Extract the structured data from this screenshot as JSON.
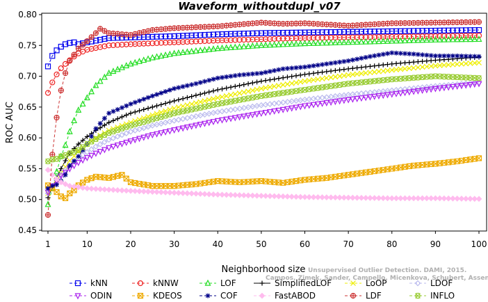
{
  "watermark": {
    "line1": "Unsupervised Outlier Detection. DAMI, 2015.",
    "line2": "Campos, Zimek, Sander, Campello, Micenkova, Schubert, Assent, Houle"
  },
  "chart_data": {
    "type": "line",
    "title": "Waveform_withoutdupl_v07",
    "xlabel": "Neighborhood size",
    "ylabel": "ROC AUC",
    "xlim": [
      1,
      100
    ],
    "ylim": [
      0.45,
      0.8
    ],
    "xticks": [
      1,
      10,
      20,
      30,
      40,
      50,
      60,
      70,
      80,
      90,
      100
    ],
    "yticks": [
      0.45,
      0.5,
      0.55,
      0.6,
      0.65,
      0.7,
      0.75,
      0.8
    ],
    "ytick_labels": [
      "0.45",
      "0.50",
      "0.55",
      "0.60",
      "0.65",
      "0.70",
      "0.75",
      "0.80"
    ],
    "grid": false,
    "legend_position": "bottom",
    "series": [
      {
        "name": "kNN",
        "color": "#0000ee",
        "marker": "square",
        "dash": "4,3",
        "points": [
          [
            1,
            0.716
          ],
          [
            2,
            0.733
          ],
          [
            3,
            0.742
          ],
          [
            4,
            0.748
          ],
          [
            5,
            0.752
          ],
          [
            6,
            0.754
          ],
          [
            7,
            0.755
          ],
          [
            8,
            0.752
          ],
          [
            10,
            0.755
          ],
          [
            15,
            0.762
          ],
          [
            20,
            0.763
          ],
          [
            30,
            0.765
          ],
          [
            40,
            0.768
          ],
          [
            50,
            0.77
          ],
          [
            60,
            0.771
          ],
          [
            70,
            0.772
          ],
          [
            80,
            0.773
          ],
          [
            90,
            0.774
          ],
          [
            100,
            0.775
          ]
        ]
      },
      {
        "name": "kNNW",
        "color": "#ee2222",
        "marker": "circle",
        "dash": "4,3",
        "points": [
          [
            1,
            0.673
          ],
          [
            2,
            0.69
          ],
          [
            3,
            0.703
          ],
          [
            4,
            0.713
          ],
          [
            5,
            0.72
          ],
          [
            6,
            0.726
          ],
          [
            7,
            0.732
          ],
          [
            8,
            0.737
          ],
          [
            10,
            0.743
          ],
          [
            15,
            0.75
          ],
          [
            20,
            0.752
          ],
          [
            30,
            0.755
          ],
          [
            40,
            0.758
          ],
          [
            50,
            0.76
          ],
          [
            60,
            0.762
          ],
          [
            70,
            0.763
          ],
          [
            80,
            0.764
          ],
          [
            90,
            0.765
          ],
          [
            100,
            0.766
          ]
        ]
      },
      {
        "name": "LOF",
        "color": "#22dd22",
        "marker": "triangle-up",
        "dash": "4,3",
        "points": [
          [
            1,
            0.492
          ],
          [
            2,
            0.518
          ],
          [
            3,
            0.545
          ],
          [
            4,
            0.57
          ],
          [
            5,
            0.588
          ],
          [
            6,
            0.61
          ],
          [
            7,
            0.628
          ],
          [
            8,
            0.645
          ],
          [
            10,
            0.665
          ],
          [
            12,
            0.685
          ],
          [
            15,
            0.705
          ],
          [
            20,
            0.72
          ],
          [
            25,
            0.73
          ],
          [
            30,
            0.737
          ],
          [
            40,
            0.745
          ],
          [
            50,
            0.75
          ],
          [
            60,
            0.753
          ],
          [
            70,
            0.755
          ],
          [
            80,
            0.757
          ],
          [
            90,
            0.759
          ],
          [
            100,
            0.76
          ]
        ]
      },
      {
        "name": "SimplifiedLOF",
        "color": "#000000",
        "marker": "plus",
        "dash": "",
        "points": [
          [
            1,
            0.503
          ],
          [
            2,
            0.52
          ],
          [
            3,
            0.535
          ],
          [
            4,
            0.55
          ],
          [
            5,
            0.563
          ],
          [
            6,
            0.575
          ],
          [
            8,
            0.59
          ],
          [
            10,
            0.602
          ],
          [
            12,
            0.612
          ],
          [
            15,
            0.625
          ],
          [
            20,
            0.64
          ],
          [
            25,
            0.65
          ],
          [
            30,
            0.66
          ],
          [
            40,
            0.678
          ],
          [
            50,
            0.692
          ],
          [
            60,
            0.703
          ],
          [
            70,
            0.712
          ],
          [
            80,
            0.72
          ],
          [
            90,
            0.726
          ],
          [
            100,
            0.731
          ]
        ]
      },
      {
        "name": "LoOP",
        "color": "#eeee00",
        "marker": "x",
        "dash": "4,3",
        "points": [
          [
            1,
            0.51
          ],
          [
            2,
            0.52
          ],
          [
            3,
            0.532
          ],
          [
            4,
            0.543
          ],
          [
            5,
            0.553
          ],
          [
            6,
            0.563
          ],
          [
            8,
            0.578
          ],
          [
            10,
            0.59
          ],
          [
            12,
            0.6
          ],
          [
            15,
            0.612
          ],
          [
            20,
            0.625
          ],
          [
            25,
            0.637
          ],
          [
            30,
            0.648
          ],
          [
            40,
            0.665
          ],
          [
            50,
            0.68
          ],
          [
            60,
            0.692
          ],
          [
            70,
            0.702
          ],
          [
            80,
            0.71
          ],
          [
            90,
            0.717
          ],
          [
            100,
            0.722
          ]
        ]
      },
      {
        "name": "LDOF",
        "color": "#bbbbee",
        "marker": "diamond",
        "dash": "4,3",
        "points": [
          [
            1,
            0.51
          ],
          [
            2,
            0.522
          ],
          [
            3,
            0.532
          ],
          [
            4,
            0.54
          ],
          [
            5,
            0.548
          ],
          [
            6,
            0.555
          ],
          [
            8,
            0.567
          ],
          [
            10,
            0.577
          ],
          [
            12,
            0.586
          ],
          [
            15,
            0.597
          ],
          [
            20,
            0.61
          ],
          [
            25,
            0.62
          ],
          [
            30,
            0.628
          ],
          [
            40,
            0.642
          ],
          [
            50,
            0.653
          ],
          [
            60,
            0.662
          ],
          [
            70,
            0.67
          ],
          [
            80,
            0.677
          ],
          [
            90,
            0.684
          ],
          [
            100,
            0.69
          ]
        ]
      },
      {
        "name": "ODIN",
        "color": "#aa22ee",
        "marker": "triangle-down",
        "dash": "4,3",
        "points": [
          [
            1,
            0.512
          ],
          [
            2,
            0.522
          ],
          [
            3,
            0.53
          ],
          [
            4,
            0.538
          ],
          [
            5,
            0.544
          ],
          [
            6,
            0.55
          ],
          [
            8,
            0.56
          ],
          [
            10,
            0.568
          ],
          [
            12,
            0.575
          ],
          [
            15,
            0.584
          ],
          [
            20,
            0.595
          ],
          [
            25,
            0.605
          ],
          [
            30,
            0.613
          ],
          [
            40,
            0.628
          ],
          [
            50,
            0.64
          ],
          [
            60,
            0.652
          ],
          [
            70,
            0.662
          ],
          [
            80,
            0.671
          ],
          [
            90,
            0.68
          ],
          [
            100,
            0.688
          ]
        ]
      },
      {
        "name": "KDEOS",
        "color": "#eeaa00",
        "marker": "square-x",
        "dash": "4,3",
        "points": [
          [
            1,
            0.523
          ],
          [
            2,
            0.518
          ],
          [
            3,
            0.512
          ],
          [
            4,
            0.505
          ],
          [
            5,
            0.502
          ],
          [
            6,
            0.51
          ],
          [
            7,
            0.515
          ],
          [
            8,
            0.523
          ],
          [
            10,
            0.532
          ],
          [
            12,
            0.537
          ],
          [
            15,
            0.535
          ],
          [
            18,
            0.54
          ],
          [
            20,
            0.528
          ],
          [
            25,
            0.522
          ],
          [
            30,
            0.522
          ],
          [
            35,
            0.525
          ],
          [
            40,
            0.53
          ],
          [
            45,
            0.528
          ],
          [
            50,
            0.53
          ],
          [
            55,
            0.527
          ],
          [
            60,
            0.532
          ],
          [
            65,
            0.535
          ],
          [
            70,
            0.54
          ],
          [
            75,
            0.545
          ],
          [
            80,
            0.55
          ],
          [
            85,
            0.555
          ],
          [
            90,
            0.558
          ],
          [
            95,
            0.562
          ],
          [
            100,
            0.567
          ]
        ]
      },
      {
        "name": "COF",
        "color": "#000088",
        "marker": "star",
        "dash": "4,3",
        "points": [
          [
            1,
            0.518
          ],
          [
            2,
            0.522
          ],
          [
            3,
            0.524
          ],
          [
            4,
            0.53
          ],
          [
            5,
            0.54
          ],
          [
            6,
            0.555
          ],
          [
            8,
            0.57
          ],
          [
            10,
            0.59
          ],
          [
            12,
            0.615
          ],
          [
            15,
            0.64
          ],
          [
            20,
            0.655
          ],
          [
            25,
            0.668
          ],
          [
            30,
            0.68
          ],
          [
            35,
            0.688
          ],
          [
            40,
            0.697
          ],
          [
            45,
            0.702
          ],
          [
            50,
            0.705
          ],
          [
            55,
            0.712
          ],
          [
            60,
            0.715
          ],
          [
            65,
            0.72
          ],
          [
            70,
            0.725
          ],
          [
            75,
            0.732
          ],
          [
            80,
            0.738
          ],
          [
            85,
            0.736
          ],
          [
            90,
            0.733
          ],
          [
            95,
            0.733
          ],
          [
            100,
            0.732
          ]
        ]
      },
      {
        "name": "FastABOD",
        "color": "#ffbbee",
        "marker": "diamond-filled",
        "dash": "4,3",
        "points": [
          [
            1,
            0.548
          ],
          [
            2,
            0.54
          ],
          [
            3,
            0.533
          ],
          [
            4,
            0.528
          ],
          [
            5,
            0.525
          ],
          [
            6,
            0.522
          ],
          [
            8,
            0.52
          ],
          [
            10,
            0.518
          ],
          [
            15,
            0.516
          ],
          [
            20,
            0.514
          ],
          [
            30,
            0.511
          ],
          [
            40,
            0.508
          ],
          [
            50,
            0.506
          ],
          [
            60,
            0.504
          ],
          [
            70,
            0.503
          ],
          [
            80,
            0.502
          ],
          [
            90,
            0.502
          ],
          [
            100,
            0.501
          ]
        ]
      },
      {
        "name": "LDF",
        "color": "#cc3333",
        "marker": "circle-plus",
        "dash": "4,3",
        "points": [
          [
            1,
            0.475
          ],
          [
            2,
            0.573
          ],
          [
            3,
            0.633
          ],
          [
            4,
            0.677
          ],
          [
            5,
            0.705
          ],
          [
            6,
            0.725
          ],
          [
            8,
            0.745
          ],
          [
            10,
            0.757
          ],
          [
            12,
            0.77
          ],
          [
            13,
            0.777
          ],
          [
            15,
            0.77
          ],
          [
            20,
            0.767
          ],
          [
            25,
            0.775
          ],
          [
            30,
            0.778
          ],
          [
            40,
            0.781
          ],
          [
            50,
            0.787
          ],
          [
            55,
            0.785
          ],
          [
            60,
            0.786
          ],
          [
            70,
            0.782
          ],
          [
            80,
            0.786
          ],
          [
            90,
            0.787
          ],
          [
            100,
            0.788
          ]
        ]
      },
      {
        "name": "INFLO",
        "color": "#99cc33",
        "marker": "hex-x",
        "dash": "4,3",
        "points": [
          [
            1,
            0.562
          ],
          [
            2,
            0.565
          ],
          [
            3,
            0.566
          ],
          [
            4,
            0.57
          ],
          [
            5,
            0.572
          ],
          [
            6,
            0.575
          ],
          [
            8,
            0.58
          ],
          [
            10,
            0.59
          ],
          [
            12,
            0.598
          ],
          [
            15,
            0.608
          ],
          [
            20,
            0.62
          ],
          [
            25,
            0.63
          ],
          [
            30,
            0.64
          ],
          [
            40,
            0.655
          ],
          [
            50,
            0.668
          ],
          [
            60,
            0.678
          ],
          [
            70,
            0.688
          ],
          [
            80,
            0.695
          ],
          [
            90,
            0.7
          ],
          [
            100,
            0.697
          ]
        ]
      }
    ]
  }
}
